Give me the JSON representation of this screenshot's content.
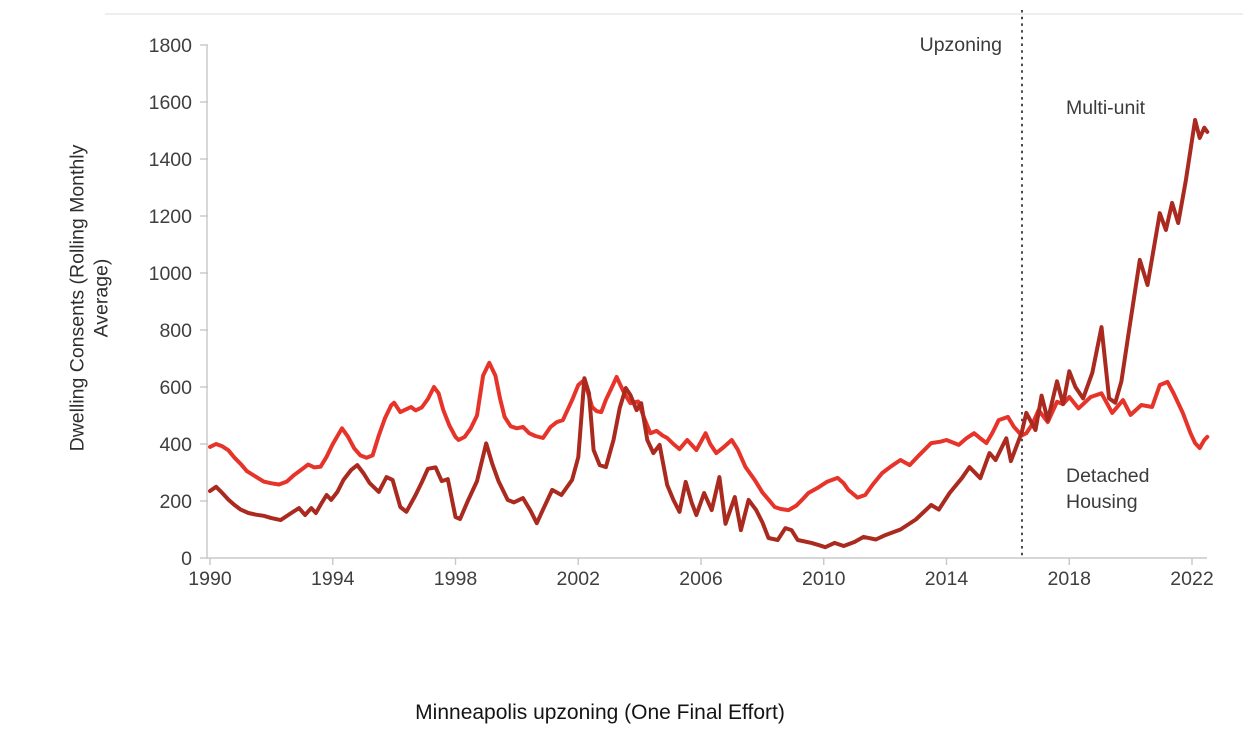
{
  "chart": {
    "y_axis_title": "Dwelling Consents (Rolling Monthly\nAverage)",
    "caption": "Minneapolis upzoning (One Final Effort)",
    "annotations": {
      "upzoning": "Upzoning",
      "multi_unit": "Multi-unit",
      "detached_housing": "Detached\nHousing"
    }
  },
  "chart_data": {
    "type": "line",
    "title": "Minneapolis upzoning (One Final Effort)",
    "xlabel": "",
    "ylabel": "Dwelling Consents (Rolling Monthly Average)",
    "xlim": [
      1990,
      2022.5
    ],
    "ylim": [
      0,
      1800
    ],
    "x_ticks": [
      1990,
      1994,
      1998,
      2002,
      2006,
      2010,
      2014,
      2018,
      2022
    ],
    "y_ticks": [
      0,
      200,
      400,
      600,
      800,
      1000,
      1200,
      1400,
      1600,
      1800
    ],
    "grid": false,
    "legend_position": "inline-annotations",
    "axis_color": "#c8c8c8",
    "frame_color": "#dcdcdc",
    "tick_label_color": "#3f3f3f",
    "annotation_line_color": "#4a4a4a",
    "annotations": [
      {
        "label": "Upzoning",
        "x": 2016.46,
        "style": "vertical-dotted-line"
      }
    ],
    "series": [
      {
        "name": "Detached Housing",
        "color": "#e7342a",
        "points": [
          [
            1990.0,
            390
          ],
          [
            1990.2,
            400
          ],
          [
            1990.4,
            392
          ],
          [
            1990.6,
            378
          ],
          [
            1990.8,
            352
          ],
          [
            1991.0,
            330
          ],
          [
            1991.2,
            305
          ],
          [
            1991.5,
            285
          ],
          [
            1991.75,
            268
          ],
          [
            1992.0,
            262
          ],
          [
            1992.25,
            258
          ],
          [
            1992.5,
            268
          ],
          [
            1992.75,
            292
          ],
          [
            1993.0,
            312
          ],
          [
            1993.2,
            328
          ],
          [
            1993.4,
            318
          ],
          [
            1993.6,
            320
          ],
          [
            1993.8,
            355
          ],
          [
            1994.0,
            400
          ],
          [
            1994.3,
            455
          ],
          [
            1994.5,
            425
          ],
          [
            1994.7,
            385
          ],
          [
            1994.9,
            360
          ],
          [
            1995.1,
            352
          ],
          [
            1995.3,
            360
          ],
          [
            1995.5,
            430
          ],
          [
            1995.7,
            490
          ],
          [
            1995.9,
            535
          ],
          [
            1996.0,
            545
          ],
          [
            1996.2,
            512
          ],
          [
            1996.4,
            522
          ],
          [
            1996.55,
            530
          ],
          [
            1996.7,
            518
          ],
          [
            1996.9,
            528
          ],
          [
            1997.1,
            558
          ],
          [
            1997.3,
            600
          ],
          [
            1997.45,
            578
          ],
          [
            1997.6,
            520
          ],
          [
            1997.8,
            465
          ],
          [
            1998.0,
            425
          ],
          [
            1998.1,
            414
          ],
          [
            1998.3,
            425
          ],
          [
            1998.5,
            455
          ],
          [
            1998.7,
            500
          ],
          [
            1998.9,
            640
          ],
          [
            1999.1,
            685
          ],
          [
            1999.3,
            640
          ],
          [
            1999.45,
            560
          ],
          [
            1999.6,
            495
          ],
          [
            1999.8,
            462
          ],
          [
            2000.0,
            455
          ],
          [
            2000.2,
            460
          ],
          [
            2000.4,
            438
          ],
          [
            2000.6,
            428
          ],
          [
            2000.85,
            421
          ],
          [
            2001.1,
            460
          ],
          [
            2001.3,
            477
          ],
          [
            2001.5,
            484
          ],
          [
            2001.8,
            554
          ],
          [
            2002.0,
            607
          ],
          [
            2002.2,
            625
          ],
          [
            2002.45,
            530
          ],
          [
            2002.6,
            515
          ],
          [
            2002.75,
            512
          ],
          [
            2002.9,
            555
          ],
          [
            2003.1,
            600
          ],
          [
            2003.25,
            635
          ],
          [
            2003.5,
            578
          ],
          [
            2003.7,
            543
          ],
          [
            2003.95,
            549
          ],
          [
            2004.15,
            491
          ],
          [
            2004.35,
            438
          ],
          [
            2004.55,
            446
          ],
          [
            2004.75,
            430
          ],
          [
            2004.9,
            421
          ],
          [
            2005.1,
            400
          ],
          [
            2005.3,
            382
          ],
          [
            2005.55,
            414
          ],
          [
            2005.85,
            379
          ],
          [
            2006.0,
            408
          ],
          [
            2006.15,
            438
          ],
          [
            2006.3,
            400
          ],
          [
            2006.5,
            368
          ],
          [
            2006.75,
            390
          ],
          [
            2007.0,
            414
          ],
          [
            2007.2,
            380
          ],
          [
            2007.45,
            319
          ],
          [
            2007.75,
            274
          ],
          [
            2008.0,
            230
          ],
          [
            2008.2,
            205
          ],
          [
            2008.4,
            179
          ],
          [
            2008.6,
            172
          ],
          [
            2008.85,
            168
          ],
          [
            2009.1,
            183
          ],
          [
            2009.3,
            205
          ],
          [
            2009.5,
            228
          ],
          [
            2009.8,
            246
          ],
          [
            2010.1,
            267
          ],
          [
            2010.45,
            281
          ],
          [
            2010.65,
            262
          ],
          [
            2010.8,
            239
          ],
          [
            2011.1,
            212
          ],
          [
            2011.35,
            221
          ],
          [
            2011.6,
            258
          ],
          [
            2011.9,
            298
          ],
          [
            2012.2,
            322
          ],
          [
            2012.5,
            344
          ],
          [
            2012.8,
            326
          ],
          [
            2013.1,
            360
          ],
          [
            2013.5,
            403
          ],
          [
            2013.8,
            408
          ],
          [
            2014.0,
            414
          ],
          [
            2014.4,
            397
          ],
          [
            2014.65,
            420
          ],
          [
            2014.9,
            438
          ],
          [
            2015.1,
            420
          ],
          [
            2015.3,
            403
          ],
          [
            2015.5,
            440
          ],
          [
            2015.7,
            484
          ],
          [
            2016.0,
            495
          ],
          [
            2016.2,
            460
          ],
          [
            2016.45,
            430
          ],
          [
            2016.6,
            438
          ],
          [
            2016.8,
            470
          ],
          [
            2017.0,
            519
          ],
          [
            2017.3,
            477
          ],
          [
            2017.6,
            548
          ],
          [
            2017.8,
            540
          ],
          [
            2018.0,
            565
          ],
          [
            2018.3,
            525
          ],
          [
            2018.7,
            565
          ],
          [
            2019.05,
            578
          ],
          [
            2019.4,
            509
          ],
          [
            2019.75,
            554
          ],
          [
            2020.0,
            502
          ],
          [
            2020.35,
            537
          ],
          [
            2020.7,
            530
          ],
          [
            2020.95,
            607
          ],
          [
            2021.2,
            618
          ],
          [
            2021.4,
            578
          ],
          [
            2021.7,
            509
          ],
          [
            2021.95,
            438
          ],
          [
            2022.1,
            403
          ],
          [
            2022.25,
            386
          ],
          [
            2022.4,
            414
          ],
          [
            2022.5,
            425
          ]
        ]
      },
      {
        "name": "Multi-unit",
        "color": "#aa2a20",
        "points": [
          [
            1990.0,
            235
          ],
          [
            1990.2,
            250
          ],
          [
            1990.4,
            228
          ],
          [
            1990.6,
            205
          ],
          [
            1990.8,
            186
          ],
          [
            1991.0,
            170
          ],
          [
            1991.25,
            158
          ],
          [
            1991.5,
            152
          ],
          [
            1991.75,
            148
          ],
          [
            1992.0,
            140
          ],
          [
            1992.3,
            133
          ],
          [
            1992.65,
            158
          ],
          [
            1992.9,
            175
          ],
          [
            1993.1,
            151
          ],
          [
            1993.3,
            175
          ],
          [
            1993.45,
            158
          ],
          [
            1993.65,
            195
          ],
          [
            1993.8,
            221
          ],
          [
            1993.95,
            204
          ],
          [
            1994.15,
            232
          ],
          [
            1994.35,
            274
          ],
          [
            1994.6,
            309
          ],
          [
            1994.8,
            326
          ],
          [
            1995.0,
            298
          ],
          [
            1995.2,
            263
          ],
          [
            1995.5,
            232
          ],
          [
            1995.75,
            284
          ],
          [
            1995.95,
            274
          ],
          [
            1996.2,
            179
          ],
          [
            1996.4,
            162
          ],
          [
            1996.7,
            221
          ],
          [
            1996.9,
            265
          ],
          [
            1997.1,
            313
          ],
          [
            1997.35,
            318
          ],
          [
            1997.55,
            270
          ],
          [
            1997.75,
            277
          ],
          [
            1998.0,
            144
          ],
          [
            1998.15,
            137
          ],
          [
            1998.4,
            200
          ],
          [
            1998.7,
            270
          ],
          [
            1999.0,
            402
          ],
          [
            1999.2,
            330
          ],
          [
            1999.4,
            270
          ],
          [
            1999.7,
            204
          ],
          [
            1999.9,
            195
          ],
          [
            2000.2,
            210
          ],
          [
            2000.45,
            165
          ],
          [
            2000.65,
            122
          ],
          [
            2000.85,
            170
          ],
          [
            2001.15,
            239
          ],
          [
            2001.45,
            221
          ],
          [
            2001.8,
            274
          ],
          [
            2002.0,
            354
          ],
          [
            2002.2,
            631
          ],
          [
            2002.35,
            578
          ],
          [
            2002.5,
            379
          ],
          [
            2002.7,
            326
          ],
          [
            2002.9,
            319
          ],
          [
            2003.15,
            414
          ],
          [
            2003.35,
            526
          ],
          [
            2003.55,
            596
          ],
          [
            2003.7,
            572
          ],
          [
            2003.9,
            519
          ],
          [
            2004.05,
            543
          ],
          [
            2004.25,
            414
          ],
          [
            2004.45,
            368
          ],
          [
            2004.65,
            397
          ],
          [
            2004.9,
            256
          ],
          [
            2005.1,
            204
          ],
          [
            2005.3,
            162
          ],
          [
            2005.5,
            267
          ],
          [
            2005.7,
            193
          ],
          [
            2005.85,
            151
          ],
          [
            2006.1,
            228
          ],
          [
            2006.35,
            168
          ],
          [
            2006.6,
            284
          ],
          [
            2006.8,
            120
          ],
          [
            2007.1,
            214
          ],
          [
            2007.3,
            98
          ],
          [
            2007.55,
            204
          ],
          [
            2007.8,
            168
          ],
          [
            2008.0,
            125
          ],
          [
            2008.2,
            70
          ],
          [
            2008.5,
            63
          ],
          [
            2008.75,
            105
          ],
          [
            2008.95,
            98
          ],
          [
            2009.15,
            63
          ],
          [
            2009.6,
            53
          ],
          [
            2009.85,
            45
          ],
          [
            2010.05,
            38
          ],
          [
            2010.35,
            53
          ],
          [
            2010.65,
            42
          ],
          [
            2011.0,
            56
          ],
          [
            2011.3,
            74
          ],
          [
            2011.7,
            65
          ],
          [
            2012.0,
            80
          ],
          [
            2012.5,
            100
          ],
          [
            2013.0,
            135
          ],
          [
            2013.5,
            186
          ],
          [
            2013.75,
            170
          ],
          [
            2014.1,
            228
          ],
          [
            2014.5,
            280
          ],
          [
            2014.75,
            319
          ],
          [
            2015.1,
            280
          ],
          [
            2015.4,
            368
          ],
          [
            2015.6,
            344
          ],
          [
            2015.95,
            420
          ],
          [
            2016.1,
            340
          ],
          [
            2016.45,
            440
          ],
          [
            2016.6,
            509
          ],
          [
            2016.9,
            449
          ],
          [
            2017.1,
            570
          ],
          [
            2017.3,
            484
          ],
          [
            2017.6,
            620
          ],
          [
            2017.8,
            540
          ],
          [
            2018.0,
            655
          ],
          [
            2018.2,
            600
          ],
          [
            2018.45,
            560
          ],
          [
            2018.75,
            650
          ],
          [
            2019.05,
            810
          ],
          [
            2019.3,
            560
          ],
          [
            2019.5,
            545
          ],
          [
            2019.7,
            620
          ],
          [
            2019.95,
            800
          ],
          [
            2020.3,
            1046
          ],
          [
            2020.55,
            958
          ],
          [
            2020.95,
            1210
          ],
          [
            2021.15,
            1151
          ],
          [
            2021.35,
            1246
          ],
          [
            2021.55,
            1175
          ],
          [
            2021.8,
            1326
          ],
          [
            2021.95,
            1432
          ],
          [
            2022.1,
            1537
          ],
          [
            2022.25,
            1474
          ],
          [
            2022.4,
            1510
          ],
          [
            2022.5,
            1495
          ]
        ]
      }
    ]
  }
}
